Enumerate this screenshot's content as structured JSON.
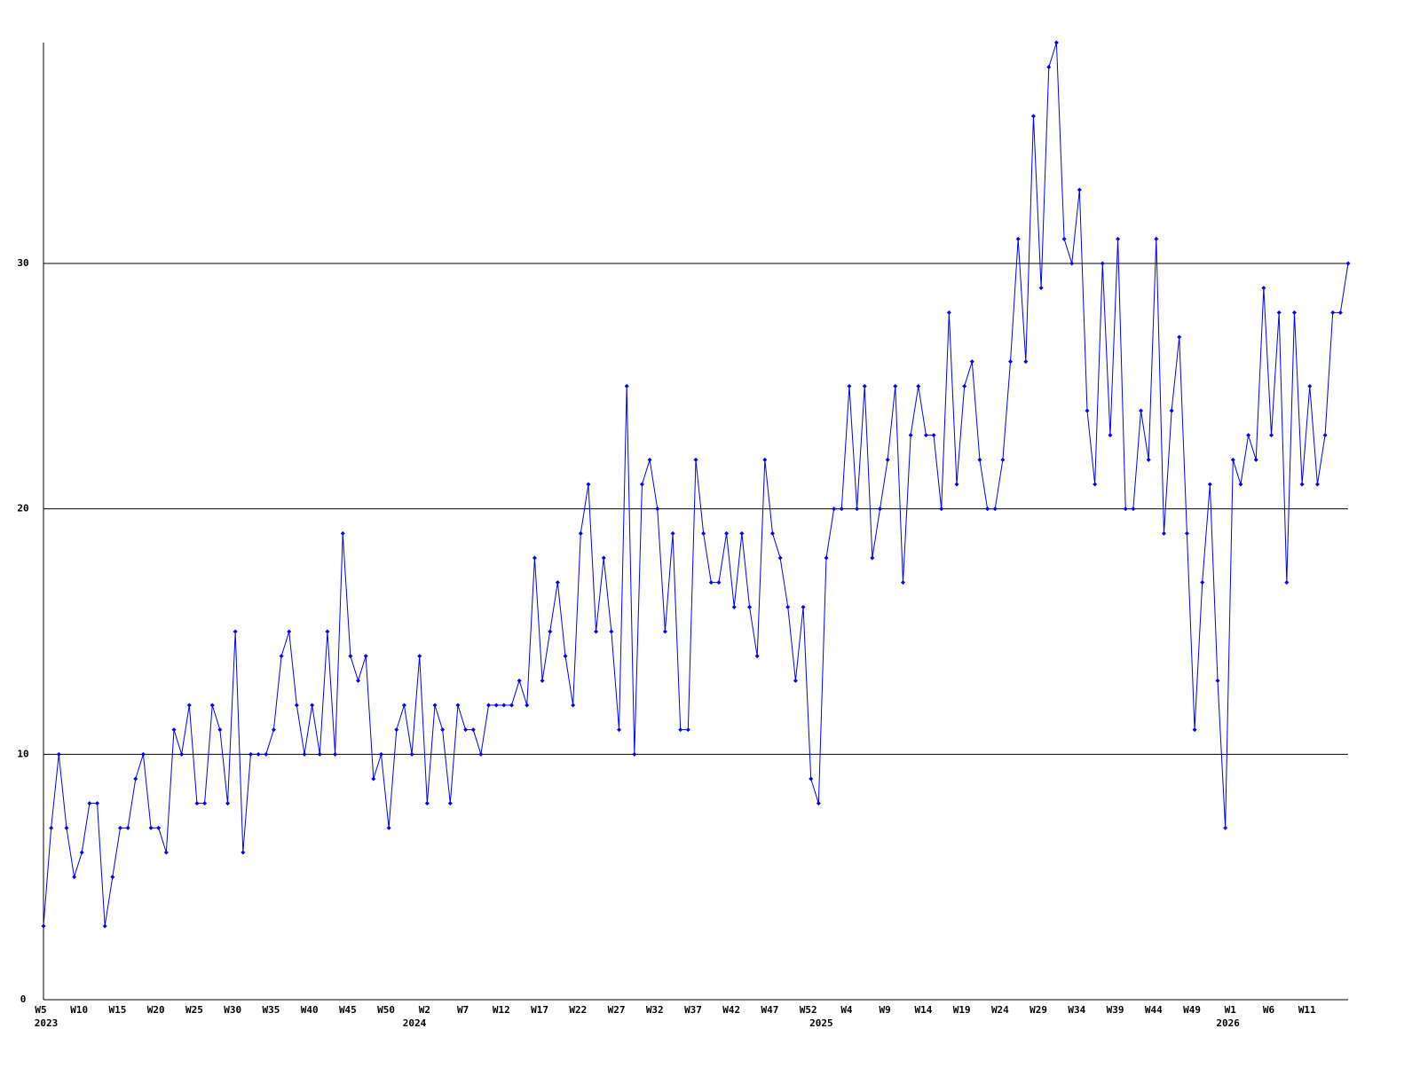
{
  "chart_data": {
    "type": "line",
    "color": "#0000ff",
    "categories": [
      "W5",
      null,
      null,
      null,
      null,
      "W10",
      null,
      null,
      null,
      null,
      "W15",
      null,
      null,
      null,
      null,
      "W20",
      null,
      null,
      null,
      null,
      "W25",
      null,
      null,
      null,
      null,
      "W30",
      null,
      null,
      null,
      null,
      "W35",
      null,
      null,
      null,
      null,
      "W40",
      null,
      null,
      null,
      null,
      "W45",
      null,
      null,
      null,
      null,
      "W50",
      null,
      null,
      null,
      null,
      "W2",
      null,
      null,
      null,
      null,
      "W7",
      null,
      null,
      null,
      null,
      "W12",
      null,
      null,
      null,
      null,
      "W17",
      null,
      null,
      null,
      null,
      "W22",
      null,
      null,
      null,
      null,
      "W27",
      null,
      null,
      null,
      null,
      "W32",
      null,
      null,
      null,
      null,
      "W37",
      null,
      null,
      null,
      null,
      "W42",
      null,
      null,
      null,
      null,
      "W47",
      null,
      null,
      null,
      null,
      "W52",
      null,
      null,
      null,
      null,
      "W4",
      null,
      null,
      null,
      null,
      "W9",
      null,
      null,
      null,
      null,
      "W14",
      null,
      null,
      null,
      null,
      "W19",
      null,
      null,
      null,
      null,
      "W24",
      null,
      null,
      null,
      null,
      "W29",
      null,
      null,
      null,
      null,
      "W34",
      null,
      null,
      null,
      null,
      "W39",
      null,
      null,
      null,
      null,
      "W44",
      null,
      null,
      null,
      null,
      "W49",
      null,
      null,
      null,
      null,
      "W1",
      null,
      null,
      null,
      null,
      "W6",
      null,
      null,
      null,
      null,
      "W11",
      null,
      null,
      null,
      null,
      null
    ],
    "year_labels": [
      {
        "at": 0,
        "label": "2023"
      },
      {
        "at": 48,
        "label": "2024"
      },
      {
        "at": 101,
        "label": "2025"
      },
      {
        "at": 154,
        "label": "2026"
      }
    ],
    "values": [
      3,
      7,
      10,
      7,
      5,
      6,
      8,
      8,
      3,
      5,
      7,
      7,
      9,
      10,
      7,
      7,
      6,
      11,
      10,
      12,
      8,
      8,
      12,
      11,
      8,
      15,
      6,
      10,
      10,
      10,
      11,
      14,
      15,
      12,
      10,
      12,
      10,
      15,
      10,
      19,
      14,
      13,
      14,
      9,
      10,
      7,
      11,
      12,
      10,
      14,
      8,
      12,
      11,
      8,
      12,
      11,
      11,
      10,
      12,
      12,
      12,
      12,
      13,
      12,
      18,
      13,
      15,
      17,
      14,
      12,
      19,
      21,
      15,
      18,
      15,
      11,
      25,
      10,
      21,
      22,
      20,
      15,
      19,
      11,
      11,
      22,
      19,
      17,
      17,
      19,
      16,
      19,
      16,
      14,
      22,
      19,
      18,
      16,
      13,
      16,
      9,
      8,
      18,
      20,
      20,
      25,
      20,
      25,
      18,
      20,
      22,
      25,
      17,
      23,
      25,
      23,
      23,
      20,
      28,
      21,
      25,
      26,
      22,
      20,
      20,
      22,
      26,
      31,
      26,
      36,
      29,
      38,
      39,
      31,
      30,
      33,
      24,
      21,
      30,
      23,
      31,
      20,
      20,
      24,
      22,
      31,
      19,
      24,
      27,
      19,
      11,
      17,
      21,
      13,
      7,
      22,
      21,
      23,
      22,
      29,
      23,
      28,
      17,
      28,
      21,
      25,
      21,
      23,
      28,
      28,
      30
    ],
    "ylim": [
      0,
      39
    ],
    "yticks": [
      0,
      10,
      20,
      30
    ],
    "grid": true
  }
}
